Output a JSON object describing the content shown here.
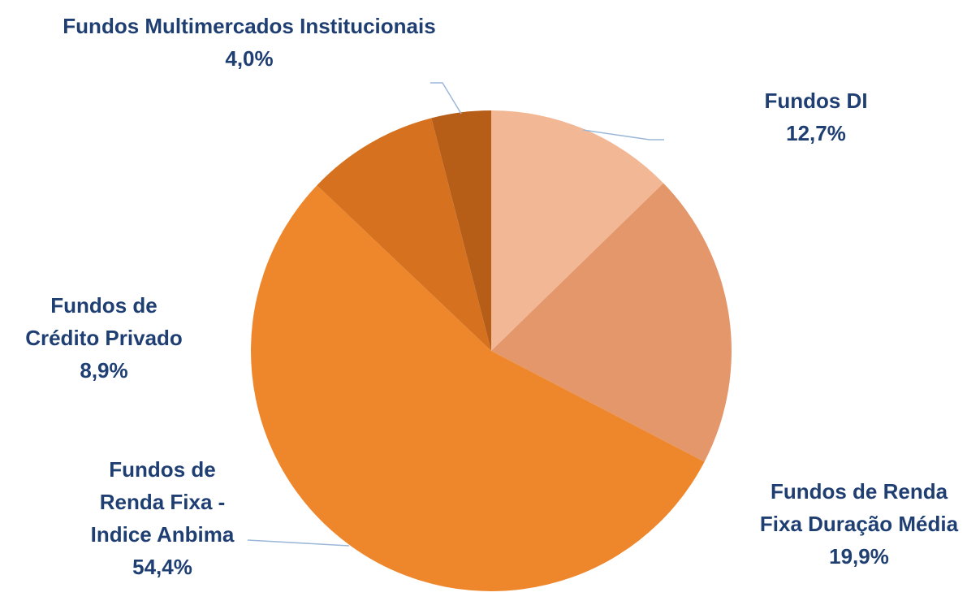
{
  "chart_data": {
    "type": "pie",
    "categories": [
      "Fundos DI",
      "Fundos de Renda Fixa Duração Média",
      "Fundos de Renda Fixa - Indice Anbima",
      "Fundos de Crédito Privado",
      "Fundos Multimercados Institucionais"
    ],
    "values": [
      12.7,
      19.9,
      54.4,
      8.9,
      4.0
    ],
    "value_labels": [
      "12,7%",
      "19,9%",
      "54,4%",
      "8,9%",
      "4,0%"
    ],
    "colors": [
      "#f2b896",
      "#e4976b",
      "#ee872c",
      "#d5711f",
      "#b65e18"
    ]
  }
}
